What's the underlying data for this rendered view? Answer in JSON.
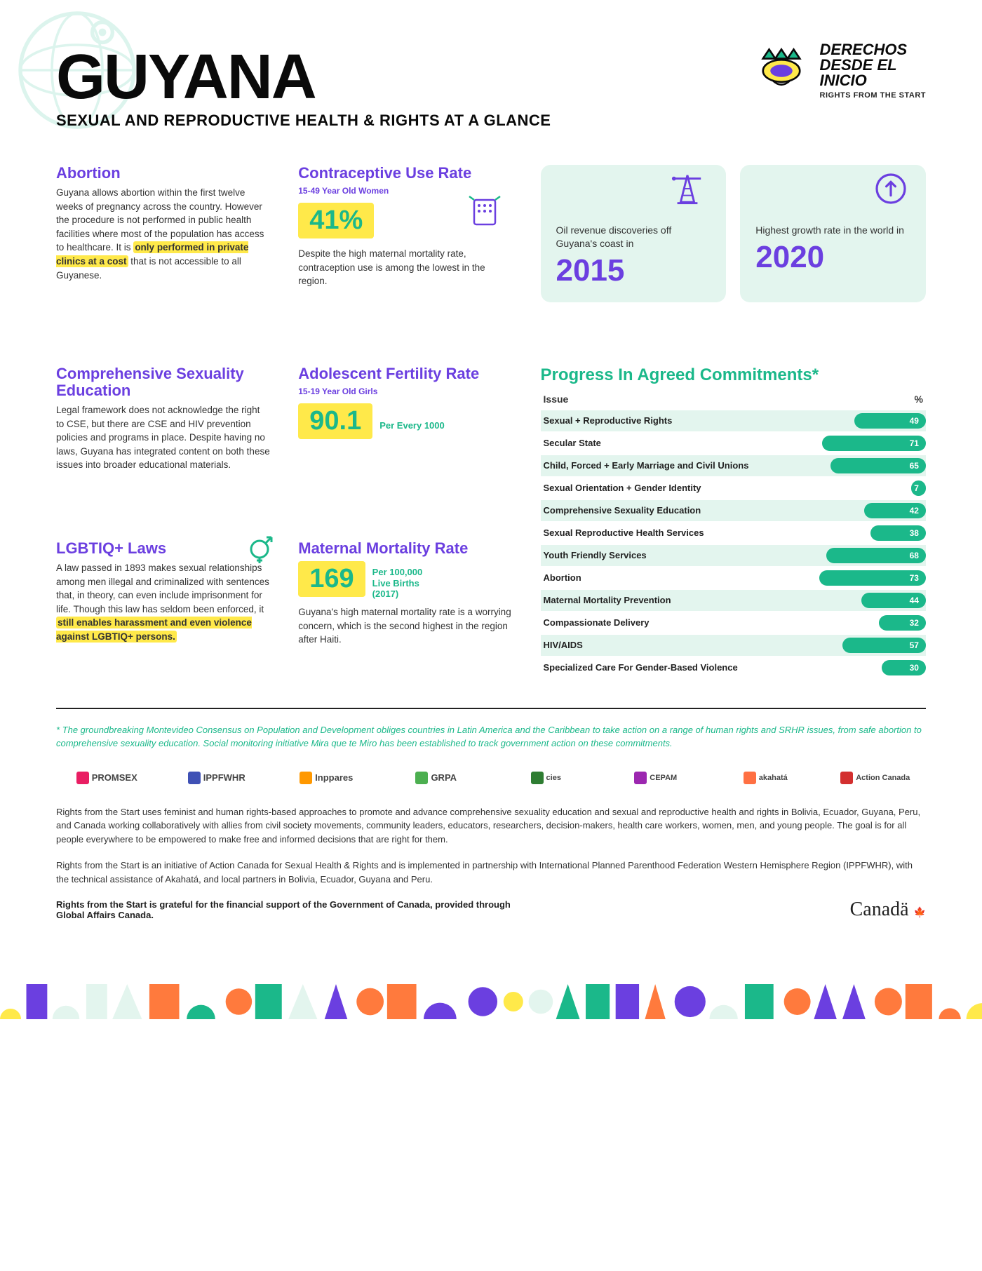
{
  "colors": {
    "purple": "#6b3fe0",
    "teal": "#1bb88a",
    "mint": "#e3f5ee",
    "yellow": "#ffe94a",
    "black": "#0a0a0a"
  },
  "header": {
    "title": "GUYANA",
    "subtitle": "SEXUAL AND REPRODUCTIVE HEALTH & RIGHTS AT A GLANCE",
    "logo_line1": "DERECHOS",
    "logo_line2": "DESDE EL",
    "logo_line3": "INICIO",
    "logo_sub": "RIGHTS FROM THE START"
  },
  "abortion": {
    "title": "Abortion",
    "text_pre": "Guyana allows abortion within the first twelve weeks of pregnancy across the country. However the procedure is not performed in public health facilities where most of the population has access to healthcare. It is ",
    "highlight": "only performed in private clinics at a cost",
    "text_post": " that is not accessible to all Guyanese."
  },
  "contraceptive": {
    "title": "Contraceptive Use Rate",
    "subtitle": "15-49 Year Old Women",
    "value": "41%",
    "text": "Despite the high maternal mortality rate, contraception use is among the lowest in the region."
  },
  "card1": {
    "text": "Oil revenue discoveries off Guyana's coast in",
    "year": "2015"
  },
  "card2": {
    "text": "Highest growth rate in the world in",
    "year": "2020"
  },
  "cse": {
    "title": "Comprehensive Sexuality Education",
    "text": "Legal framework does not acknowledge the right to CSE, but there are CSE and HIV prevention policies and programs in place. Despite having no laws, Guyana has integrated content on both these issues into broader educational materials."
  },
  "fertility": {
    "title": "Adolescent Fertility Rate",
    "subtitle": "15-19 Year Old Girls",
    "value": "90.1",
    "unit": "Per Every 1000"
  },
  "mortality": {
    "title": "Maternal Mortality Rate",
    "value": "169",
    "unit": "Per 100,000 Live Births (2017)",
    "text": "Guyana's high maternal mortality rate is a worrying concern, which is the second highest in the region after Haiti."
  },
  "lgbtiq": {
    "title": "LGBTIQ+ Laws",
    "text_pre": "A law passed in 1893 makes sexual relationships among men illegal and criminalized with sentences that, in theory, can even include imprisonment for life. Though this law has seldom been enforced, it ",
    "highlight": "still enables harassment and even violence against LGBTIQ+ persons."
  },
  "progress": {
    "title": "Progress In Agreed Commitments*",
    "col_issue": "Issue",
    "col_pct": "%",
    "rows": [
      {
        "label": "Sexual + Reproductive Rights",
        "value": 49
      },
      {
        "label": "Secular State",
        "value": 71
      },
      {
        "label": "Child, Forced + Early Marriage and Civil Unions",
        "value": 65
      },
      {
        "label": "Sexual Orientation + Gender Identity",
        "value": 7
      },
      {
        "label": "Comprehensive Sexuality Education",
        "value": 42
      },
      {
        "label": "Sexual Reproductive Health Services",
        "value": 38
      },
      {
        "label": "Youth Friendly Services",
        "value": 68
      },
      {
        "label": "Abortion",
        "value": 73
      },
      {
        "label": "Maternal Mortality Prevention",
        "value": 44
      },
      {
        "label": "Compassionate Delivery",
        "value": 32
      },
      {
        "label": "HIV/AIDS",
        "value": 57
      },
      {
        "label": "Specialized Care For Gender-Based Violence",
        "value": 30
      }
    ]
  },
  "footnote": "*  The groundbreaking Montevideo Consensus on Population and Development obliges countries in Latin America and the Caribbean to take action on a range of human rights and SRHR issues, from safe abortion to comprehensive sexuality education. Social monitoring initiative Mira que te Miro has been established to track government action on these commitments.",
  "partners": [
    "PROMSEX",
    "IPPFWHR",
    "Inppares",
    "GRPA",
    "cies",
    "CEPAM",
    "akahatá",
    "Action Canada"
  ],
  "footer1": "Rights from the Start uses feminist and human rights-based approaches to promote and advance comprehensive sexuality education and sexual and reproductive health and rights in Bolivia, Ecuador, Guyana, Peru, and Canada working collaboratively with allies from civil society movements, community leaders, educators, researchers, decision-makers, health care workers, women, men, and young people. The goal is for all people everywhere to be empowered to make free and informed decisions that are right for them.",
  "footer2": "Rights from the Start is an initiative of Action Canada for Sexual Health & Rights and is implemented in partnership with International Planned Parenthood Federation Western Hemisphere Region (IPPFWHR), with the technical assistance of Akahatá, and local partners in Bolivia, Ecuador, Guyana and Peru.",
  "footer3": "Rights from the Start is grateful for the financial support of the Government of Canada, provided through Global Affairs Canada.",
  "canada": "Canadä"
}
